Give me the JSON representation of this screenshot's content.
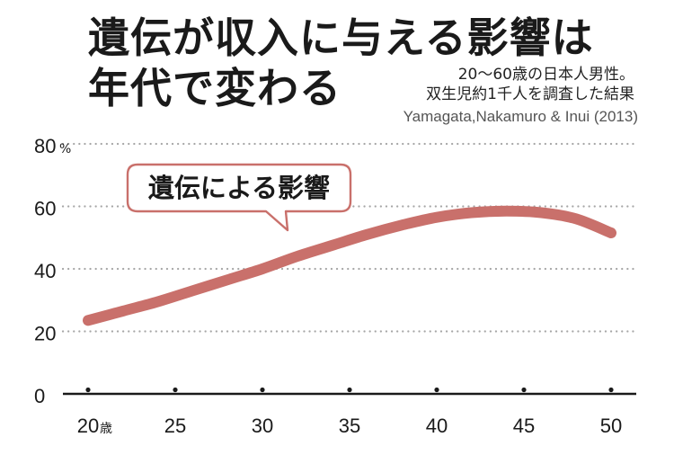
{
  "header": {
    "title_line1": "遺伝が収入に与える影響は",
    "title_line2": "年代で変わる",
    "note_line1": "20〜60歳の日本人男性。",
    "note_line2": "双生児約1千人を調査した結果",
    "source": "Yamagata,Nakamuro & Inui (2013)"
  },
  "chart_data": {
    "type": "line",
    "title": "遺伝が収入に与える影響は年代で変わる",
    "xlabel": "",
    "ylabel": "",
    "x_ticks": [
      20,
      25,
      30,
      35,
      40,
      45,
      50
    ],
    "x_tick_labels": [
      "20",
      "25",
      "30",
      "35",
      "40",
      "45",
      "50"
    ],
    "x_unit": "歳",
    "y_ticks": [
      0,
      20,
      40,
      60,
      80
    ],
    "y_tick_labels": [
      "0",
      "20",
      "40",
      "60",
      "80"
    ],
    "y_unit": "%",
    "xlim": [
      20,
      50
    ],
    "ylim": [
      0,
      80
    ],
    "grid": true,
    "series": [
      {
        "name": "遺伝による影響",
        "color": "#c9706b",
        "x": [
          20,
          22,
          24,
          26,
          28,
          30,
          32,
          34,
          36,
          38,
          40,
          42,
          44,
          46,
          48,
          50
        ],
        "values": [
          23.5,
          26.5,
          29.5,
          33,
          36.5,
          40,
          44,
          47.5,
          51,
          54,
          56.5,
          58,
          58.5,
          58,
          56,
          51.5
        ]
      }
    ],
    "annotations": [
      {
        "text": "遺伝による影響",
        "series": "遺伝による影響"
      }
    ]
  }
}
